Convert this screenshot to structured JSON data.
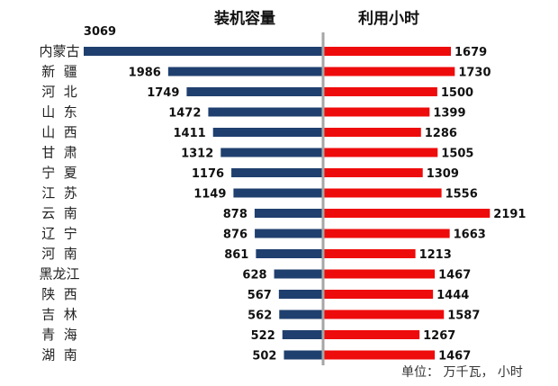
{
  "chart_data": {
    "type": "bar",
    "orientation": "horizontal-butterfly",
    "headers": [
      "装机容量",
      "利用小时"
    ],
    "categories": [
      "内蒙古",
      "新  疆",
      "河  北",
      "山  东",
      "山  西",
      "甘  肃",
      "宁  夏",
      "江  苏",
      "云  南",
      "辽  宁",
      "河  南",
      "黑龙江",
      "陕  西",
      "吉  林",
      "青  海",
      "湖  南"
    ],
    "series": [
      {
        "name": "装机容量",
        "color": "#1f3f6e",
        "values": [
          3069,
          1986,
          1749,
          1472,
          1411,
          1312,
          1176,
          1149,
          878,
          876,
          861,
          628,
          567,
          562,
          522,
          502
        ]
      },
      {
        "name": "利用小时",
        "color": "#ee0b0b",
        "values": [
          1679,
          1730,
          1500,
          1399,
          1286,
          1505,
          1309,
          1556,
          2191,
          1663,
          1213,
          1467,
          1444,
          1587,
          1267,
          1467
        ]
      }
    ],
    "unit_note": "单位：  万千瓦，  小时",
    "axis_color": "#a6a6a6"
  }
}
